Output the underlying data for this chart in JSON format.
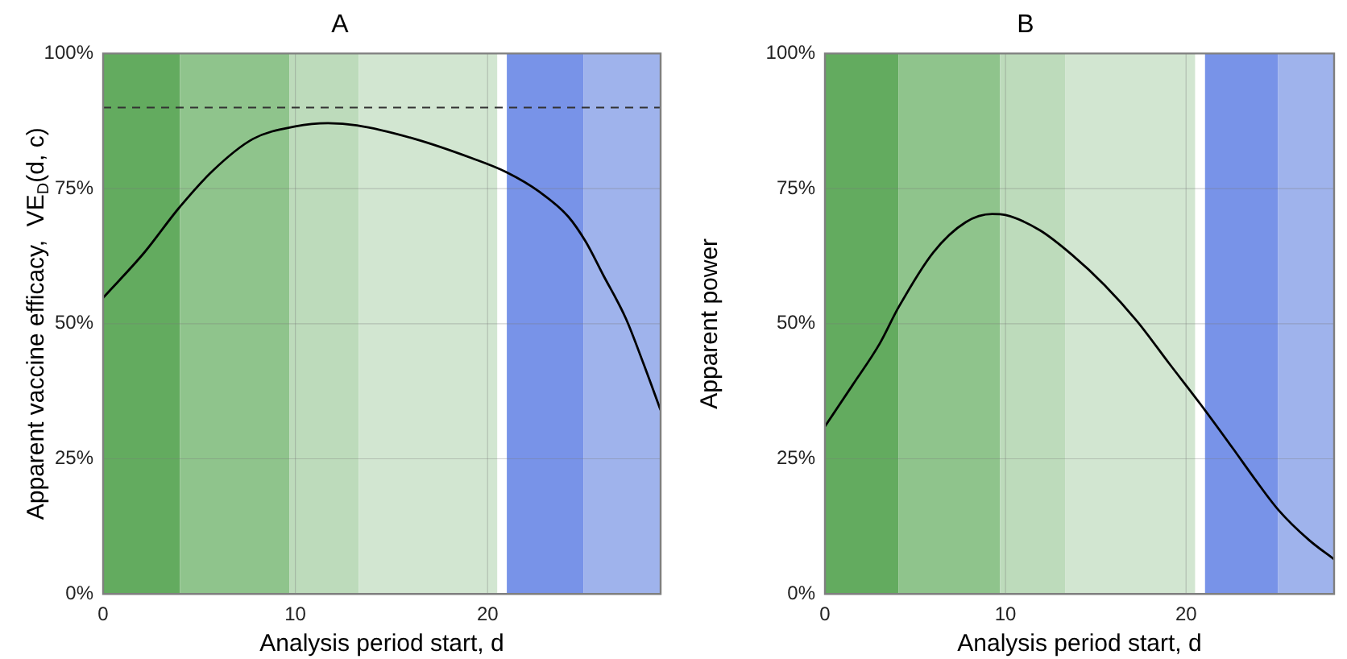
{
  "chart_data": [
    {
      "type": "line",
      "title": "A",
      "xlabel": "Analysis period start, d",
      "ylabel": "Apparent vaccine efficacy,  VE$_{D}$(d, c)",
      "series": [
        {
          "color": "#000000",
          "x": [
            0,
            2.15,
            3.94,
            5.7,
            7.8,
            10,
            11.7,
            13.2,
            16.2,
            19.2,
            21,
            22.7,
            24.2,
            25.1,
            26,
            27.2,
            28.1,
            29
          ],
          "values": [
            54.8,
            63.2,
            71.4,
            78.3,
            84.2,
            86.5,
            87.1,
            86.7,
            84.2,
            80.6,
            78,
            74.4,
            69.8,
            65.2,
            59.1,
            50.9,
            42.7,
            34
          ]
        }
      ],
      "xlim": [
        0,
        29
      ],
      "xticks": [
        0,
        10,
        20
      ],
      "ylim": [
        0,
        100
      ],
      "yticks": [
        {
          "value": 0,
          "label": "0%"
        },
        {
          "value": 25,
          "label": "25%"
        },
        {
          "value": 50,
          "label": "50%"
        },
        {
          "value": 75,
          "label": "75%"
        },
        {
          "value": 100,
          "label": "100%"
        }
      ],
      "grid": true,
      "marker": "none",
      "line_style": "solid",
      "ref_lines": [
        {
          "axis": "y",
          "value": 90,
          "color": "#333333",
          "line_style": "dashed"
        }
      ],
      "bands": [
        {
          "axis": "x",
          "from": 0,
          "to": 4,
          "color": "#63ab5f"
        },
        {
          "axis": "x",
          "from": 4,
          "to": 9.7,
          "color": "#8fc48c"
        },
        {
          "axis": "x",
          "from": 9.7,
          "to": 13.3,
          "color": "#bddbbb"
        },
        {
          "axis": "x",
          "from": 13.3,
          "to": 20.5,
          "color": "#d2e6d1"
        },
        {
          "axis": "x",
          "from": 21,
          "to": 25,
          "color": "#7893e8"
        },
        {
          "axis": "x",
          "from": 25,
          "to": 29,
          "color": "#9fb3ec"
        }
      ]
    },
    {
      "type": "line",
      "title": "B",
      "xlabel": "Analysis period start, d",
      "ylabel": "Apparent power",
      "series": [
        {
          "color": "#000000",
          "x": [
            0,
            1.54,
            3.03,
            4.07,
            6,
            7.8,
            9.26,
            10,
            11.9,
            13.7,
            15.5,
            17.3,
            19.05,
            20.8,
            22.6,
            23.8,
            25.1,
            26.8,
            28.2
          ],
          "values": [
            31,
            38.7,
            46.3,
            53,
            63.2,
            68.8,
            70.3,
            70.1,
            67.3,
            62.7,
            57.1,
            50.4,
            42.7,
            35.1,
            26.9,
            21.3,
            15.6,
            10,
            6.4
          ]
        }
      ],
      "xlim": [
        0,
        28.2
      ],
      "xticks": [
        0,
        10,
        20
      ],
      "ylim": [
        0,
        100
      ],
      "yticks": [
        {
          "value": 0,
          "label": "0%"
        },
        {
          "value": 25,
          "label": "25%"
        },
        {
          "value": 50,
          "label": "50%"
        },
        {
          "value": 75,
          "label": "75%"
        },
        {
          "value": 100,
          "label": "100%"
        }
      ],
      "grid": true,
      "marker": "none",
      "line_style": "solid",
      "bands": [
        {
          "axis": "x",
          "from": 0,
          "to": 4.07,
          "color": "#63ab5f"
        },
        {
          "axis": "x",
          "from": 4.07,
          "to": 9.7,
          "color": "#8fc48c"
        },
        {
          "axis": "x",
          "from": 9.7,
          "to": 13.3,
          "color": "#bddbbb"
        },
        {
          "axis": "x",
          "from": 13.3,
          "to": 20.5,
          "color": "#d2e6d1"
        },
        {
          "axis": "x",
          "from": 21.05,
          "to": 25.1,
          "color": "#7893e8"
        },
        {
          "axis": "x",
          "from": 25.1,
          "to": 28.2,
          "color": "#9fb3ec"
        }
      ]
    }
  ]
}
